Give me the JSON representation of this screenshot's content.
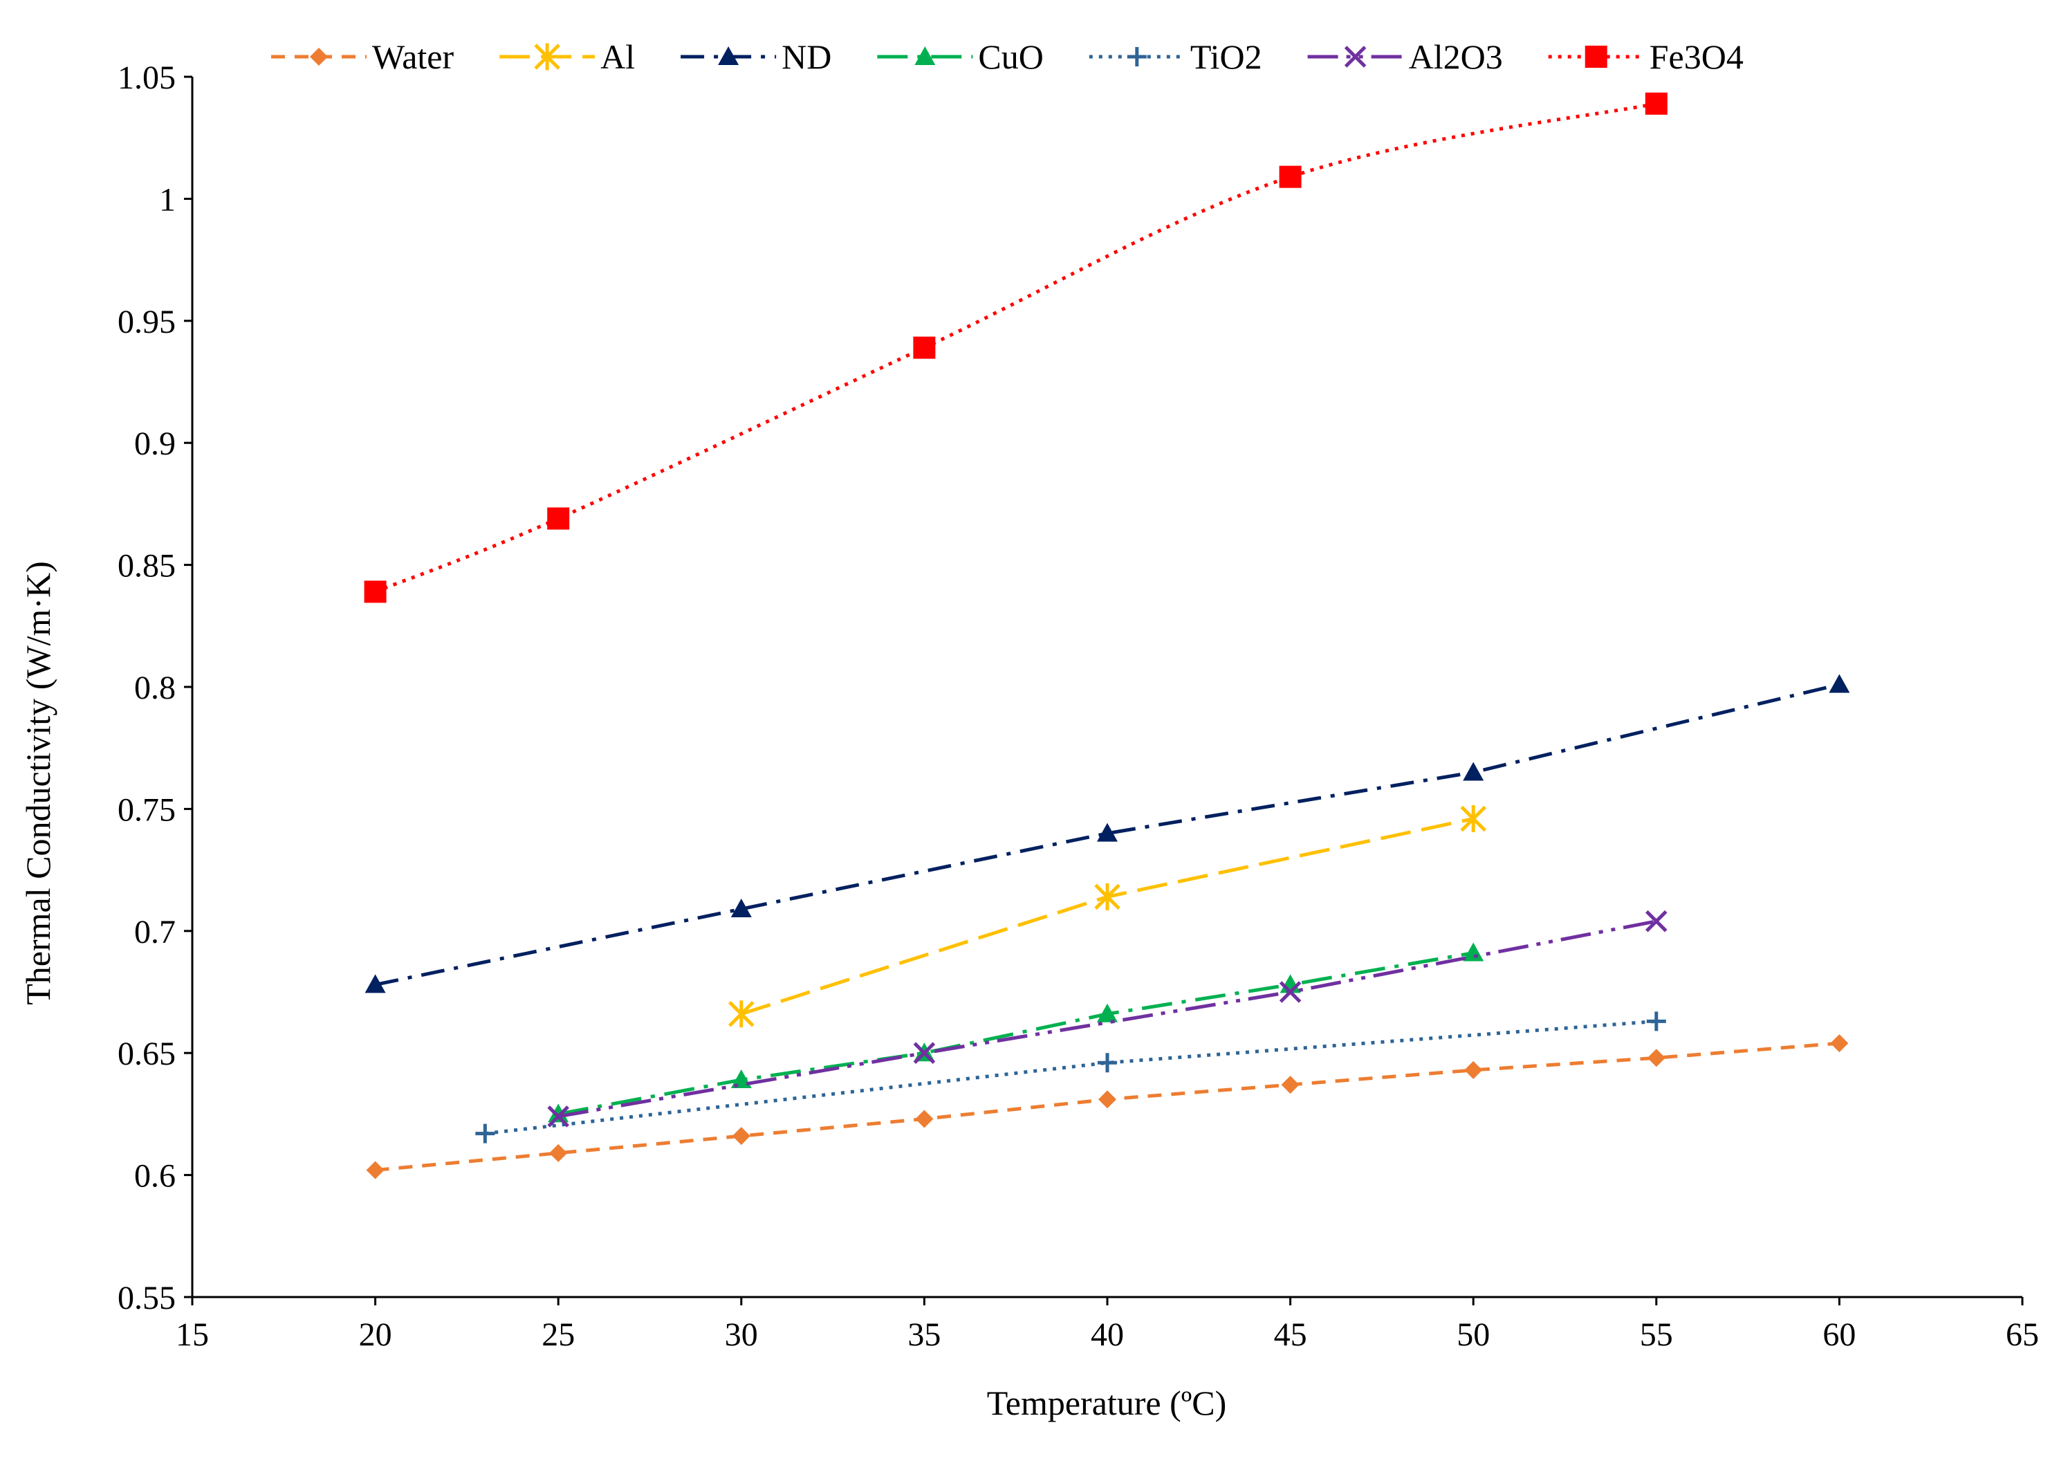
{
  "chart_data": {
    "type": "line",
    "title": "",
    "xlabel": "Temperature (ºC)",
    "ylabel": "Thermal Conductivity  (W/m·K)",
    "xlim": [
      15,
      65
    ],
    "ylim": [
      0.55,
      1.05
    ],
    "xticks": [
      15,
      20,
      25,
      30,
      35,
      40,
      45,
      50,
      55,
      60,
      65
    ],
    "yticks": [
      0.55,
      0.6,
      0.65,
      0.7,
      0.75,
      0.8,
      0.85,
      0.9,
      0.95,
      1,
      1.05
    ],
    "xtick_labels": [
      "15",
      "20",
      "25",
      "30",
      "35",
      "40",
      "45",
      "50",
      "55",
      "60",
      "65"
    ],
    "ytick_labels": [
      "0.55",
      "0.6",
      "0.65",
      "0.7",
      "0.75",
      "0.8",
      "0.85",
      "0.9",
      "0.95",
      "1",
      "1.05"
    ],
    "grid": false,
    "legend_position": "top",
    "series": [
      {
        "name": "Water",
        "color": "#ED7D31",
        "marker": "diamond",
        "dash": "short-dash",
        "smooth": false,
        "x": [
          20,
          25,
          30,
          35,
          40,
          45,
          50,
          55,
          60
        ],
        "y": [
          0.602,
          0.609,
          0.616,
          0.623,
          0.631,
          0.637,
          0.643,
          0.648,
          0.654
        ]
      },
      {
        "name": "Al",
        "color": "#FFC000",
        "marker": "asterisk",
        "dash": "long-dash",
        "smooth": false,
        "x": [
          30,
          40,
          50
        ],
        "y": [
          0.666,
          0.714,
          0.746
        ]
      },
      {
        "name": "ND",
        "color": "#002060",
        "marker": "triangle",
        "dash": "dash-dot",
        "smooth": false,
        "x": [
          20,
          30,
          40,
          50,
          60
        ],
        "y": [
          0.678,
          0.709,
          0.74,
          0.765,
          0.801
        ]
      },
      {
        "name": "CuO",
        "color": "#00B050",
        "marker": "triangle",
        "dash": "long-dash-dot",
        "smooth": false,
        "x": [
          25,
          30,
          35,
          40,
          45,
          50
        ],
        "y": [
          0.625,
          0.639,
          0.65,
          0.666,
          0.678,
          0.691
        ]
      },
      {
        "name": "TiO2",
        "color": "#2E6496",
        "marker": "plus",
        "dash": "dotted",
        "smooth": false,
        "x": [
          23,
          40,
          55
        ],
        "y": [
          0.617,
          0.646,
          0.663
        ]
      },
      {
        "name": "Al2O3",
        "color": "#7030A0",
        "marker": "x",
        "dash": "long-dash-dot-dot",
        "smooth": false,
        "x": [
          25,
          35,
          45,
          55
        ],
        "y": [
          0.624,
          0.65,
          0.675,
          0.704
        ]
      },
      {
        "name": "Fe3O4",
        "color": "#FF0000",
        "marker": "square",
        "dash": "dotted",
        "smooth": true,
        "x": [
          20,
          25,
          35,
          45,
          55
        ],
        "y": [
          0.839,
          0.869,
          0.939,
          1.009,
          1.039
        ]
      }
    ]
  }
}
